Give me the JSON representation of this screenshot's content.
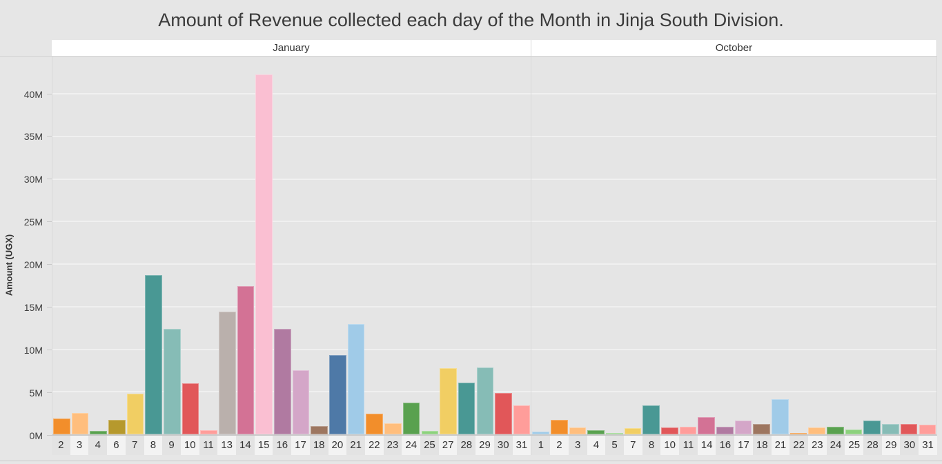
{
  "title": "Amount of Revenue collected each day of the Month in Jinja South Division.",
  "y_axis": {
    "label": "Amount (UGX)",
    "tick_labels": [
      "0M",
      "5M",
      "10M",
      "15M",
      "20M",
      "25M",
      "30M",
      "35M",
      "40M"
    ],
    "tick_values_M": [
      0,
      5,
      10,
      15,
      20,
      25,
      30,
      35,
      40
    ]
  },
  "chart_data": {
    "type": "bar",
    "title": "Amount of Revenue collected each day of the Month in Jinja South Division.",
    "xlabel": "",
    "ylabel": "Amount (UGX)",
    "ylim_M": [
      0,
      44.4
    ],
    "grid": true,
    "legend": "none",
    "panels": [
      {
        "label": "January",
        "days": [
          2,
          3,
          4,
          6,
          7,
          8,
          9,
          10,
          11,
          13,
          14,
          15,
          16,
          17,
          18,
          20,
          21,
          22,
          23,
          24,
          25,
          27,
          28,
          29,
          30,
          31
        ],
        "values_M": [
          1.9,
          2.5,
          0.4,
          1.7,
          4.8,
          18.7,
          12.4,
          6.0,
          0.5,
          14.4,
          17.4,
          42.3,
          12.4,
          7.5,
          1.0,
          9.3,
          13.0,
          2.4,
          1.3,
          3.7,
          0.4,
          7.8,
          6.1,
          7.9,
          4.9,
          3.4
        ],
        "colors": [
          "#F28E2B",
          "#FFBE7D",
          "#59A14F",
          "#B6992D",
          "#F1CE63",
          "#499894",
          "#86BCB6",
          "#E15759",
          "#FF9D9A",
          "#BAB0AC",
          "#D37295",
          "#FABFD2",
          "#B07AA1",
          "#D4A6C8",
          "#9D7660",
          "#4E79A7",
          "#A0CBE8",
          "#F28E2B",
          "#FFBE7D",
          "#59A14F",
          "#8CD17D",
          "#F1CE63",
          "#499894",
          "#86BCB6",
          "#E15759",
          "#FF9D9A"
        ]
      },
      {
        "label": "October",
        "days": [
          1,
          2,
          3,
          4,
          5,
          7,
          8,
          10,
          11,
          14,
          16,
          17,
          18,
          21,
          22,
          23,
          24,
          25,
          28,
          29,
          30,
          31
        ],
        "values_M": [
          0.3,
          1.7,
          0.8,
          0.5,
          0.2,
          0.7,
          3.4,
          0.8,
          0.9,
          2.0,
          0.9,
          1.6,
          1.2,
          4.1,
          0.2,
          0.8,
          0.9,
          0.6,
          1.6,
          1.2,
          1.2,
          1.1
        ],
        "colors": [
          "#A0CBE8",
          "#F28E2B",
          "#FFBE7D",
          "#59A14F",
          "#8CD17D",
          "#F1CE63",
          "#499894",
          "#E15759",
          "#FF9D9A",
          "#D37295",
          "#B07AA1",
          "#D4A6C8",
          "#9D7660",
          "#A0CBE8",
          "#F28E2B",
          "#FFBE7D",
          "#59A14F",
          "#8CD17D",
          "#499894",
          "#86BCB6",
          "#E15759",
          "#FF9D9A"
        ]
      }
    ]
  }
}
